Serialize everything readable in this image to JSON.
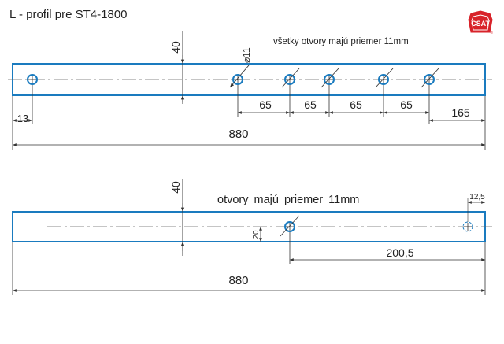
{
  "title": "L - profil pre ST4-1800",
  "logo": {
    "text": "CSAT",
    "mark": "®",
    "color": "#d8232a"
  },
  "colors": {
    "profile": "#1a7bbf",
    "hole": "#1a7bbf",
    "dim": "#333333",
    "center": "#666666"
  },
  "top_view": {
    "note": "všetky otvory majú priemer 11mm",
    "height_label": "40",
    "diameter_label": "⌀11",
    "edge_label": "13",
    "spacing_labels": [
      "65",
      "65",
      "65",
      "65"
    ],
    "end_label": "165",
    "total_label": "880"
  },
  "bottom_view": {
    "note": "otvory majú priemer 11mm",
    "height_label": "40",
    "hole_height_label": "20",
    "small_label": "12,5",
    "offset_label": "200,5",
    "total_label": "880"
  }
}
